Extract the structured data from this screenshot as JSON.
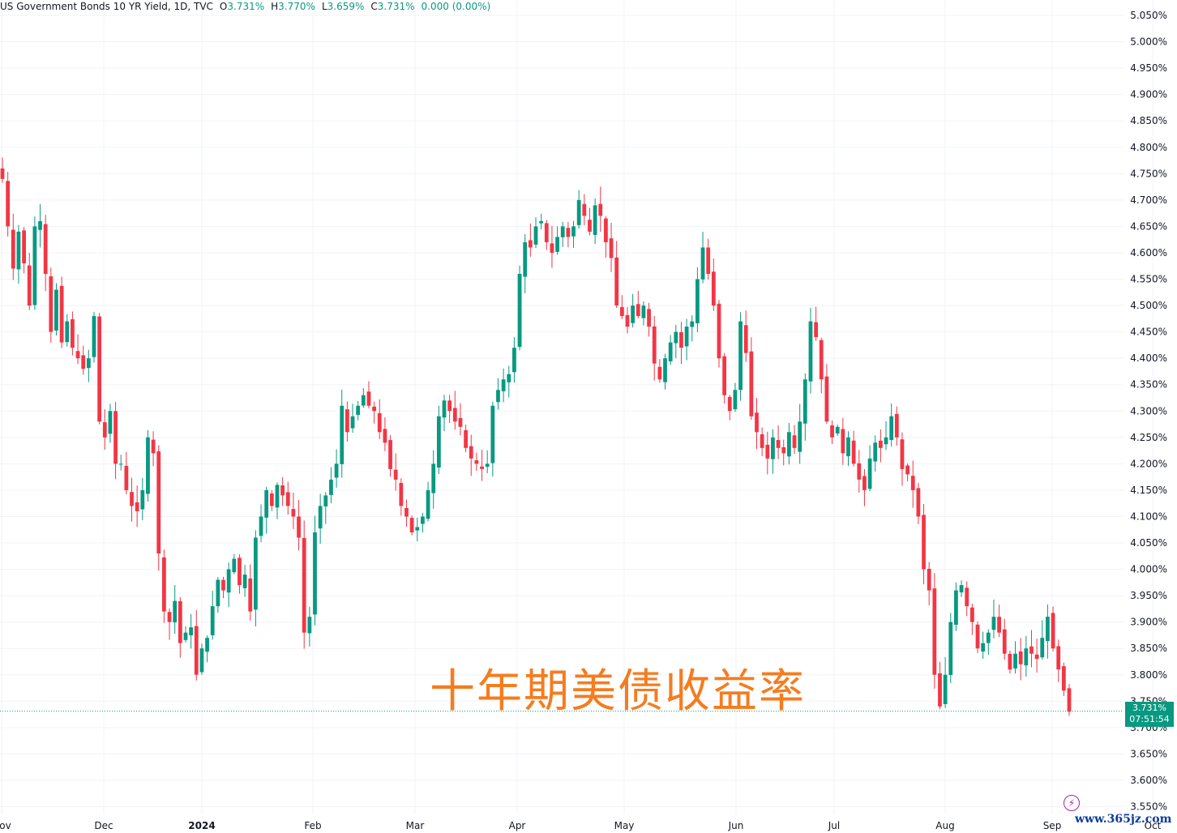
{
  "legend": {
    "symbol": "US Government Bonds 10 YR Yield, 1D, TVC",
    "o_label": "O",
    "o_value": "3.731%",
    "h_label": "H",
    "h_value": "3.770%",
    "l_label": "L",
    "l_value": "3.659%",
    "c_label": "C",
    "c_value": "3.731%",
    "change": "0.000 (0.00%)"
  },
  "overlay_title": "十年期美债收益率",
  "current_price": {
    "value": "3.731%",
    "timer": "07:51:54"
  },
  "watermark": "www.365jz.com",
  "colors": {
    "up": "#089981",
    "down": "#f23645",
    "grid": "#f0f3fa",
    "overlay": "#f57c1f"
  },
  "icons": [
    "lightning-icon"
  ],
  "chart_data": {
    "type": "candlestick",
    "title": "US Government Bonds 10 YR Yield, 1D, TVC",
    "ylim": [
      3.53,
      5.07
    ],
    "y_ticks": [
      "5.050%",
      "5.000%",
      "4.950%",
      "4.900%",
      "4.850%",
      "4.800%",
      "4.750%",
      "4.700%",
      "4.650%",
      "4.600%",
      "4.550%",
      "4.500%",
      "4.450%",
      "4.400%",
      "4.350%",
      "4.300%",
      "4.250%",
      "4.200%",
      "4.150%",
      "4.100%",
      "4.050%",
      "4.000%",
      "3.950%",
      "3.900%",
      "3.850%",
      "3.800%",
      "3.750%",
      "3.700%",
      "3.650%",
      "3.600%",
      "3.550%"
    ],
    "x_ticks": [
      "Nov",
      "Dec",
      "2024",
      "Feb",
      "Mar",
      "Apr",
      "May",
      "Jun",
      "Jul",
      "Aug",
      "Sep",
      "Oct"
    ],
    "grid": true,
    "closes": [
      4.74,
      4.65,
      4.57,
      4.64,
      4.58,
      4.5,
      4.65,
      4.66,
      4.56,
      4.45,
      4.53,
      4.43,
      4.47,
      4.42,
      4.4,
      4.38,
      4.4,
      4.48,
      4.28,
      4.25,
      4.3,
      4.2,
      4.2,
      4.15,
      4.12,
      4.11,
      4.15,
      4.25,
      4.22,
      4.03,
      3.92,
      3.9,
      3.94,
      3.86,
      3.88,
      3.89,
      3.8,
      3.85,
      3.87,
      3.93,
      3.98,
      3.96,
      4.0,
      4.02,
      3.97,
      3.99,
      3.92,
      4.06,
      4.1,
      4.15,
      4.12,
      4.16,
      4.14,
      4.12,
      4.1,
      4.06,
      3.88,
      3.91,
      4.07,
      4.12,
      4.14,
      4.17,
      4.2,
      4.31,
      4.26,
      4.29,
      4.31,
      4.33,
      4.31,
      4.3,
      4.26,
      4.24,
      4.19,
      4.17,
      4.12,
      4.1,
      4.07,
      4.08,
      4.1,
      4.15,
      4.2,
      4.29,
      4.32,
      4.3,
      4.28,
      4.27,
      4.23,
      4.21,
      4.2,
      4.19,
      4.2,
      4.31,
      4.34,
      4.36,
      4.37,
      4.42,
      4.56,
      4.62,
      4.61,
      4.65,
      4.66,
      4.62,
      4.6,
      4.63,
      4.65,
      4.63,
      4.65,
      4.7,
      4.67,
      4.64,
      4.69,
      4.67,
      4.62,
      4.59,
      4.5,
      4.48,
      4.46,
      4.5,
      4.48,
      4.5,
      4.46,
      4.39,
      4.36,
      4.4,
      4.43,
      4.45,
      4.42,
      4.46,
      4.47,
      4.55,
      4.61,
      4.56,
      4.5,
      4.4,
      4.33,
      4.3,
      4.34,
      4.47,
      4.41,
      4.29,
      4.26,
      4.23,
      4.21,
      4.25,
      4.23,
      4.22,
      4.26,
      4.23,
      4.28,
      4.36,
      4.47,
      4.44,
      4.36,
      4.28,
      4.25,
      4.27,
      4.22,
      4.25,
      4.2,
      4.17,
      4.15,
      4.21,
      4.24,
      4.23,
      4.25,
      4.29,
      4.25,
      4.19,
      4.18,
      4.15,
      4.1,
      4.0,
      3.96,
      3.8,
      3.74,
      3.8,
      3.9,
      3.96,
      3.97,
      3.93,
      3.9,
      3.85,
      3.86,
      3.88,
      3.91,
      3.88,
      3.84,
      3.81,
      3.84,
      3.82,
      3.85,
      3.84,
      3.83,
      3.87,
      3.91,
      3.85,
      3.81,
      3.77,
      3.73
    ]
  }
}
